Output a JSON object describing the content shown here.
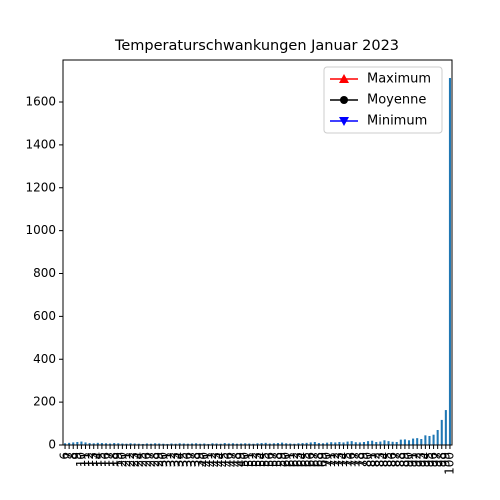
{
  "chart_data": {
    "type": "bar",
    "title": "Temperaturschwankungen Januar 2023",
    "categories": [
      "6",
      "7",
      "8",
      "9",
      "10",
      "11",
      "12",
      "13",
      "14",
      "15",
      "16",
      "17",
      "18",
      "19",
      "20",
      "21",
      "22",
      "23",
      "24",
      "25",
      "26",
      "27",
      "28",
      "29",
      "30",
      "31",
      "32",
      "33",
      "34",
      "35",
      "36",
      "37",
      "38",
      "39",
      "40",
      "41",
      "42",
      "43",
      "44",
      "45",
      "46",
      "47",
      "48",
      "49",
      "50",
      "51",
      "52",
      "53",
      "54",
      "55",
      "56",
      "57",
      "58",
      "59",
      "60",
      "61",
      "62",
      "63",
      "64",
      "65",
      "66",
      "67",
      "68",
      "69",
      "70",
      "71",
      "72",
      "73",
      "74",
      "75",
      "76",
      "77",
      "78",
      "79",
      "80",
      "81",
      "82",
      "83",
      "84",
      "85",
      "86",
      "87",
      "88",
      "89",
      "90",
      "91",
      "92",
      "93",
      "94",
      "95",
      "96",
      "97",
      "98",
      "99",
      "100"
    ],
    "values": [
      8,
      10,
      12,
      14,
      16,
      12,
      9,
      8,
      10,
      9,
      8,
      7,
      9,
      8,
      7,
      6,
      8,
      7,
      6,
      5,
      7,
      6,
      8,
      7,
      6,
      5,
      7,
      6,
      8,
      7,
      6,
      7,
      8,
      6,
      7,
      5,
      8,
      7,
      6,
      9,
      7,
      8,
      6,
      7,
      8,
      7,
      6,
      8,
      9,
      10,
      7,
      8,
      9,
      11,
      8,
      7,
      6,
      8,
      9,
      10,
      12,
      14,
      9,
      8,
      11,
      13,
      12,
      14,
      12,
      16,
      18,
      13,
      12,
      14,
      18,
      20,
      14,
      16,
      22,
      18,
      15,
      14,
      25,
      26,
      22,
      30,
      32,
      28,
      45,
      42,
      48,
      70,
      117,
      163,
      1712
    ],
    "color": "#1f77b4",
    "ylim": [
      0,
      1796
    ],
    "yticks": [
      0,
      200,
      400,
      600,
      800,
      1000,
      1200,
      1400,
      1600
    ],
    "legend_position": "upper right",
    "legend": [
      {
        "name": "Maximum",
        "color": "#ff0000",
        "marker": "triangle-up"
      },
      {
        "name": "Moyenne",
        "color": "#000000",
        "marker": "circle"
      },
      {
        "name": "Minimum",
        "color": "#0000ff",
        "marker": "triangle-down"
      }
    ]
  }
}
